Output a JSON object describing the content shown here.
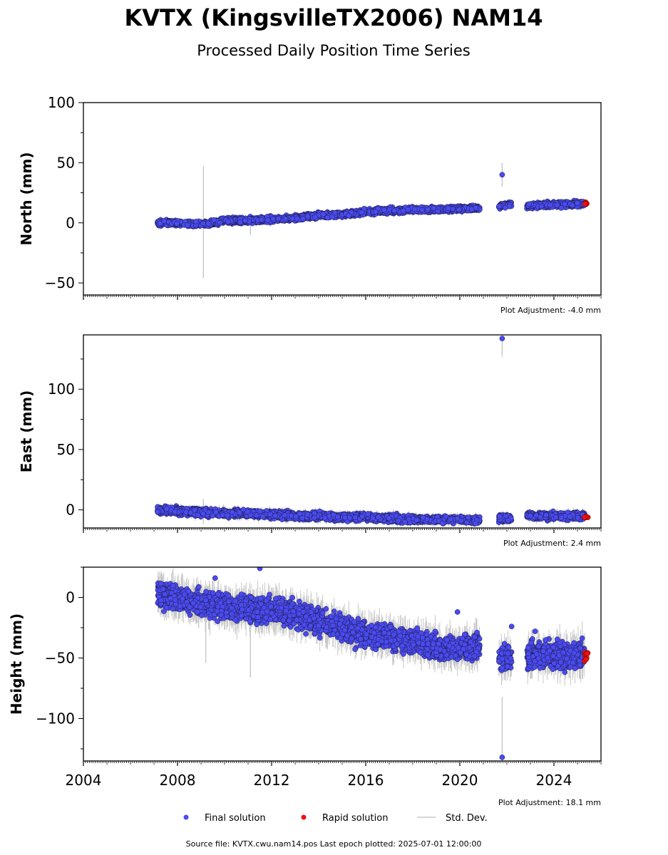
{
  "title": "KVTX (KingsvilleTX2006) NAM14",
  "subtitle": "Processed Daily Position Time Series",
  "footer": "Source file: KVTX.cwu.nam14.pos  Last epoch plotted: 2025-07-01 12:00:00",
  "colors": {
    "final": "#4a4af0",
    "rapid": "#ee1111",
    "stddev": "#c8c8c8"
  },
  "chart_data": [
    {
      "type": "scatter",
      "id": "north",
      "ylabel": "North (mm)",
      "xlim": [
        2004,
        2026
      ],
      "ylim": [
        -60,
        100
      ],
      "yticks": [
        -50,
        0,
        50,
        100
      ],
      "xticks": [
        2004,
        2008,
        2012,
        2016,
        2020,
        2024
      ],
      "show_xtick_labels": false,
      "adjustment": "Plot Adjustment: -4.0 mm",
      "series": [
        {
          "name": "Final solution",
          "style": "final",
          "scatter_mm": 1.5,
          "segments": [
            {
              "x": [
                2007.15,
                2008.0,
                2008.5,
                2009.3,
                2010.0,
                2011.0,
                2012.0,
                2013.0,
                2014.0,
                2015.0,
                2016.0,
                2017.0,
                2018.0,
                2019.0,
                2020.0,
                2020.85
              ],
              "y": [
                0,
                0,
                -1,
                -1,
                2,
                2,
                3,
                4,
                6,
                7,
                9,
                10,
                11,
                11,
                12,
                12
              ]
            },
            {
              "x": [
                2021.65,
                2022.2
              ],
              "y": [
                14,
                15
              ]
            },
            {
              "x": [
                2022.85,
                2025.3
              ],
              "y": [
                14,
                16
              ]
            }
          ],
          "outliers": [
            {
              "x": 2021.8,
              "y": 40
            }
          ]
        },
        {
          "name": "Rapid solution",
          "style": "rapid",
          "x": [
            2025.3,
            2025.45
          ],
          "y": [
            16,
            16
          ]
        }
      ],
      "stddev_spikes": [
        {
          "x": 2009.1,
          "lo": -46,
          "hi": 47
        },
        {
          "x": 2011.1,
          "lo": -10,
          "hi": 6
        },
        {
          "x": 2021.8,
          "lo": 30,
          "hi": 50
        }
      ]
    },
    {
      "type": "scatter",
      "id": "east",
      "ylabel": "East (mm)",
      "xlim": [
        2004,
        2026
      ],
      "ylim": [
        -15,
        145
      ],
      "yticks": [
        0,
        50,
        100
      ],
      "xticks": [
        2004,
        2008,
        2012,
        2016,
        2020,
        2024
      ],
      "show_xtick_labels": false,
      "adjustment": "Plot Adjustment: 2.4 mm",
      "series": [
        {
          "name": "Final solution",
          "style": "final",
          "scatter_mm": 2,
          "segments": [
            {
              "x": [
                2007.15,
                2008.0,
                2009.0,
                2010.0,
                2011.0,
                2012.0,
                2013.0,
                2014.0,
                2015.0,
                2016.0,
                2017.0,
                2018.0,
                2019.0,
                2020.0,
                2020.85
              ],
              "y": [
                0,
                -1,
                -2,
                -3,
                -3,
                -4,
                -5,
                -5,
                -6,
                -6,
                -7,
                -8,
                -8,
                -8,
                -9
              ]
            },
            {
              "x": [
                2021.65,
                2022.2
              ],
              "y": [
                -7,
                -7
              ]
            },
            {
              "x": [
                2022.85,
                2025.3
              ],
              "y": [
                -5,
                -5
              ]
            }
          ],
          "outliers": [
            {
              "x": 2021.8,
              "y": 142
            }
          ]
        },
        {
          "name": "Rapid solution",
          "style": "rapid",
          "x": [
            2025.3,
            2025.45
          ],
          "y": [
            -6,
            -6
          ]
        }
      ],
      "stddev_spikes": [
        {
          "x": 2009.1,
          "lo": -12,
          "hi": 9
        },
        {
          "x": 2021.8,
          "lo": 127,
          "hi": 143
        }
      ]
    },
    {
      "type": "scatter",
      "id": "height",
      "ylabel": "Height (mm)",
      "xlim": [
        2004,
        2026
      ],
      "ylim": [
        -135,
        25
      ],
      "yticks": [
        -100,
        -50,
        0
      ],
      "xticks": [
        2004,
        2008,
        2012,
        2016,
        2020,
        2024
      ],
      "show_xtick_labels": true,
      "adjustment": "Plot Adjustment: 18.1 mm",
      "series": [
        {
          "name": "Final solution",
          "style": "final",
          "scatter_mm": 7,
          "segments": [
            {
              "x": [
                2007.15,
                2008.0,
                2009.0,
                2010.0,
                2011.0,
                2012.0,
                2013.0,
                2014.0,
                2015.0,
                2016.0,
                2017.0,
                2018.0,
                2019.0,
                2020.0,
                2020.85
              ],
              "y": [
                3,
                0,
                -5,
                -7,
                -10,
                -10,
                -14,
                -20,
                -25,
                -30,
                -33,
                -36,
                -42,
                -42,
                -40
              ]
            },
            {
              "x": [
                2021.65,
                2022.2
              ],
              "y": [
                -50,
                -50
              ]
            },
            {
              "x": [
                2022.85,
                2025.3
              ],
              "y": [
                -48,
                -48
              ]
            }
          ],
          "outliers": [
            {
              "x": 2021.8,
              "y": -132
            },
            {
              "x": 2011.5,
              "y": 24
            },
            {
              "x": 2009.6,
              "y": 16
            },
            {
              "x": 2022.2,
              "y": -24
            },
            {
              "x": 2019.9,
              "y": -12
            },
            {
              "x": 2023.2,
              "y": -28
            }
          ]
        },
        {
          "name": "Rapid solution",
          "style": "rapid",
          "x": [
            2025.3,
            2025.45
          ],
          "y": [
            -48,
            -48
          ]
        }
      ],
      "stddev_spikes": [
        {
          "x": 2009.2,
          "lo": -54,
          "hi": 6
        },
        {
          "x": 2011.1,
          "lo": -66,
          "hi": 6
        },
        {
          "x": 2021.8,
          "lo": -132,
          "hi": -82
        }
      ]
    }
  ],
  "legend": {
    "final_label": "Final solution",
    "rapid_label": "Rapid solution",
    "stddev_label": "Std. Dev."
  }
}
